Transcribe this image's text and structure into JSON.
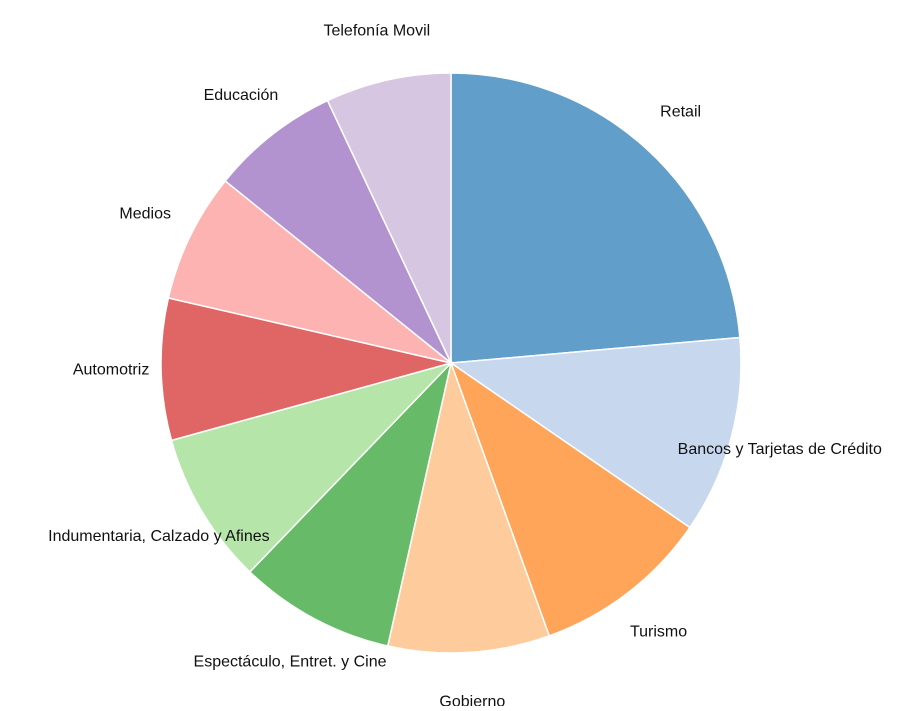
{
  "chart_data": {
    "type": "pie",
    "categories": [
      "Retail",
      "Bancos y Tarjetas de Crédito",
      "Turismo",
      "Gobierno",
      "Espectáculo, Entret. y Cine",
      "Indumentaria, Calzado y Afines",
      "Automotriz",
      "Medios",
      "Educación",
      "Telefonía Movil"
    ],
    "values": [
      23.6,
      11,
      9.9,
      9,
      8.7,
      8.5,
      7.9,
      7.2,
      7.2,
      7
    ],
    "colors": [
      "#619fca",
      "#c7d8ee",
      "#fea55a",
      "#fecb9c",
      "#67bb68",
      "#b5e5a8",
      "#e06666",
      "#feb3b3",
      "#b293d0",
      "#d6c6e2"
    ]
  }
}
